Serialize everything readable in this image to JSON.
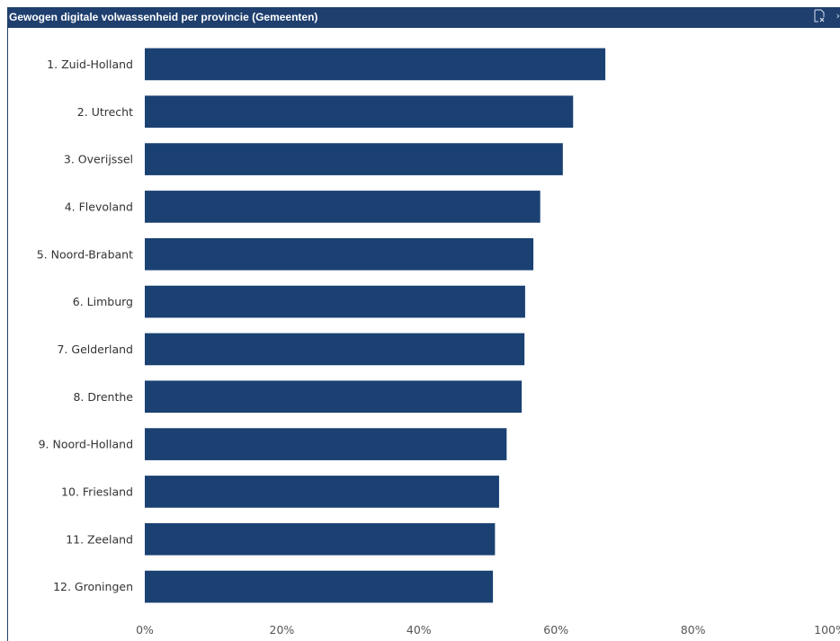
{
  "window": {
    "title": "Gewogen digitale volwassenheid per provincie (Gemeenten)",
    "clear_filter_icon": "clear-filter-icon",
    "more_glyph": "›"
  },
  "colors": {
    "bar": "#1a4172",
    "header": "#1f3f6e"
  },
  "chart_data": {
    "type": "bar",
    "orientation": "horizontal",
    "title": "Gewogen digitale volwassenheid per provincie (Gemeenten)",
    "categories": [
      "1. Zuid-Holland",
      "2. Utrecht",
      "3. Overijssel",
      "4. Flevoland",
      "5. Noord-Brabant",
      "6. Limburg",
      "7. Gelderland",
      "8. Drenthe",
      "9. Noord-Holland",
      "10. Friesland",
      "11. Zeeland",
      "12. Groningen"
    ],
    "values": [
      67.2,
      62.5,
      61.0,
      57.7,
      56.7,
      55.5,
      55.4,
      55.0,
      52.8,
      51.7,
      51.1,
      50.8
    ],
    "xlim": [
      0,
      100
    ],
    "x_ticks": [
      0,
      20,
      40,
      60,
      80,
      100
    ],
    "x_tick_labels": [
      "0%",
      "20%",
      "40%",
      "60%",
      "80%",
      "100%"
    ],
    "xlabel": "",
    "ylabel": "",
    "grid": false
  }
}
